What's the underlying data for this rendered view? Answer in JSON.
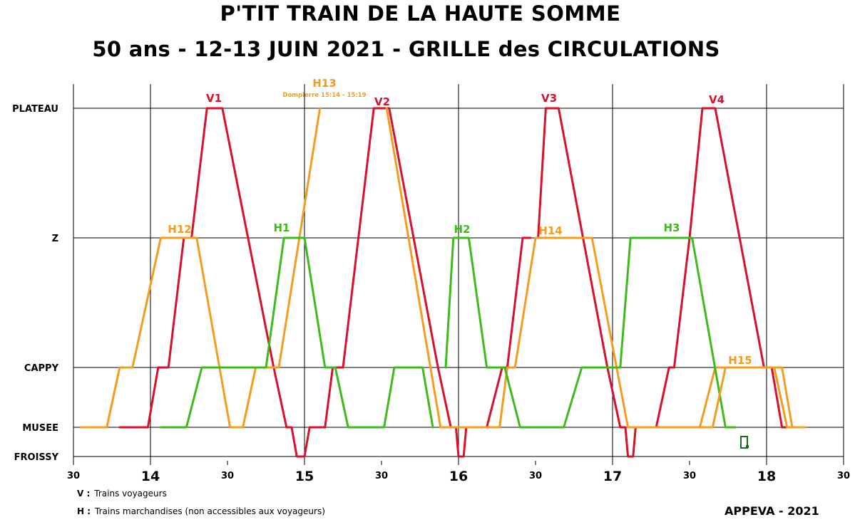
{
  "header": {
    "title_line1": "P'TIT TRAIN DE LA HAUTE SOMME",
    "title_line2": "50 ans - 12-13 JUIN 2021 - GRILLE des CIRCULATIONS"
  },
  "legend": {
    "v_key": "V :",
    "v_text": "Trains voyageurs",
    "h_key": "H :",
    "h_text": "Trains marchandises (non accessibles aux voyageurs)"
  },
  "credit": "APPEVA - 2021",
  "colors": {
    "voyageurs": "#d8102c",
    "marchandises_orange": "#f39c1e",
    "marchandises_green": "#3dbb1c",
    "grid": "#000000",
    "marker": "#1e6b1e"
  },
  "chart_data": {
    "type": "line",
    "title": "50 ans - 12-13 JUIN 2021 - GRILLE des CIRCULATIONS",
    "x_unit": "time (h:mm)",
    "x_range": [
      "13:30",
      "18:30"
    ],
    "x_ticks": [
      {
        "t": "13:30",
        "label": "30",
        "major": false
      },
      {
        "t": "14:00",
        "label": "14",
        "major": true
      },
      {
        "t": "14:30",
        "label": "30",
        "major": false
      },
      {
        "t": "15:00",
        "label": "15",
        "major": true
      },
      {
        "t": "15:30",
        "label": "30",
        "major": false
      },
      {
        "t": "16:00",
        "label": "16",
        "major": true
      },
      {
        "t": "16:30",
        "label": "30",
        "major": false
      },
      {
        "t": "17:00",
        "label": "17",
        "major": true
      },
      {
        "t": "17:30",
        "label": "30",
        "major": false
      },
      {
        "t": "18:00",
        "label": "18",
        "major": true
      },
      {
        "t": "18:30",
        "label": "30",
        "major": false
      }
    ],
    "stations": [
      {
        "id": "PLATEAU",
        "label": "PLATEAU"
      },
      {
        "id": "Z",
        "label": "Z"
      },
      {
        "id": "CAPPY",
        "label": "CAPPY"
      },
      {
        "id": "MUSEE",
        "label": "MUSEE"
      },
      {
        "id": "FROISSY",
        "label": "FROISSY"
      }
    ],
    "grid": true,
    "series": [
      {
        "name": "V1",
        "color": "#d8102c",
        "label_at": "14:25",
        "segments": [
          [
            [
              "13:48",
              "MUSEE"
            ],
            [
              "13:59",
              "MUSEE"
            ],
            [
              "14:03",
              "CAPPY"
            ],
            [
              "14:07",
              "CAPPY"
            ],
            [
              "14:13",
              "Z"
            ],
            [
              "14:17",
              "Z"
            ]
          ],
          [
            [
              "14:16",
              "Z"
            ],
            [
              "14:22",
              "PLATEAU"
            ],
            [
              "14:28",
              "PLATEAU"
            ],
            [
              "14:48",
              "CAPPY"
            ],
            [
              "14:53",
              "MUSEE"
            ],
            [
              "14:55",
              "MUSEE"
            ],
            [
              "14:57",
              "FROISSY"
            ],
            [
              "15:00",
              "FROISSY"
            ],
            [
              "15:02",
              "MUSEE"
            ],
            [
              "15:08",
              "MUSEE"
            ]
          ]
        ]
      },
      {
        "name": "V2",
        "color": "#d8102c",
        "label_at": "15:30",
        "segments": [
          [
            [
              "15:08",
              "MUSEE"
            ],
            [
              "15:11",
              "CAPPY"
            ],
            [
              "15:15",
              "CAPPY"
            ],
            [
              "15:27",
              "PLATEAU"
            ],
            [
              "15:33",
              "PLATEAU"
            ],
            [
              "15:52",
              "CAPPY"
            ],
            [
              "15:57",
              "MUSEE"
            ],
            [
              "15:59",
              "MUSEE"
            ],
            [
              "16:00",
              "FROISSY"
            ],
            [
              "16:02",
              "FROISSY"
            ],
            [
              "16:03",
              "MUSEE"
            ],
            [
              "16:11",
              "MUSEE"
            ]
          ]
        ]
      },
      {
        "name": "V3",
        "color": "#d8102c",
        "label_at": "16:37",
        "segments": [
          [
            [
              "16:11",
              "MUSEE"
            ],
            [
              "16:17",
              "CAPPY"
            ],
            [
              "16:19",
              "CAPPY"
            ],
            [
              "16:25",
              "Z"
            ],
            [
              "16:28",
              "Z"
            ]
          ],
          [
            [
              "16:31",
              "Z"
            ],
            [
              "16:34",
              "PLATEAU"
            ],
            [
              "16:39",
              "PLATEAU"
            ],
            [
              "16:58",
              "CAPPY"
            ],
            [
              "17:03",
              "MUSEE"
            ],
            [
              "17:05",
              "MUSEE"
            ],
            [
              "17:06",
              "FROISSY"
            ],
            [
              "17:08",
              "FROISSY"
            ],
            [
              "17:09",
              "MUSEE"
            ],
            [
              "17:17",
              "MUSEE"
            ]
          ]
        ]
      },
      {
        "name": "V4",
        "color": "#d8102c",
        "label_at": "17:42",
        "segments": [
          [
            [
              "17:17",
              "MUSEE"
            ],
            [
              "17:22",
              "CAPPY"
            ],
            [
              "17:24",
              "CAPPY"
            ],
            [
              "17:30",
              "Z"
            ],
            [
              "17:35",
              "PLATEAU"
            ],
            [
              "17:40",
              "PLATEAU"
            ],
            [
              "17:59",
              "CAPPY"
            ],
            [
              "18:02",
              "CAPPY"
            ],
            [
              "18:06",
              "MUSEE"
            ],
            [
              "18:08",
              "MUSEE"
            ]
          ]
        ]
      },
      {
        "name": "H12",
        "color": "#f39c1e",
        "label_at": "14:12",
        "segments": [
          [
            [
              "13:33",
              "MUSEE"
            ],
            [
              "13:43",
              "MUSEE"
            ],
            [
              "13:48",
              "CAPPY"
            ],
            [
              "13:53",
              "CAPPY"
            ],
            [
              "14:04",
              "Z"
            ],
            [
              "14:18",
              "Z"
            ],
            [
              "14:31",
              "MUSEE"
            ],
            [
              "14:36",
              "MUSEE"
            ],
            [
              "14:41",
              "CAPPY"
            ],
            [
              "14:50",
              "CAPPY"
            ],
            [
              "15:06",
              "PLATEAU"
            ]
          ]
        ]
      },
      {
        "name": "H13",
        "color": "#f39c1e",
        "label_at": "15:08",
        "note": "Dompierre 15:14 - 15:19",
        "segments": [
          [
            [
              "15:32",
              "PLATEAU"
            ],
            [
              "15:53",
              "MUSEE"
            ],
            [
              "16:16",
              "MUSEE"
            ],
            [
              "16:19",
              "CAPPY"
            ],
            [
              "16:22",
              "CAPPY"
            ],
            [
              "16:30",
              "Z"
            ]
          ]
        ]
      },
      {
        "name": "H14",
        "color": "#f39c1e",
        "label_at": "16:41",
        "segments": [
          [
            [
              "16:30",
              "Z"
            ],
            [
              "16:52",
              "Z"
            ],
            [
              "17:06",
              "MUSEE"
            ],
            [
              "17:34",
              "MUSEE"
            ],
            [
              "17:40",
              "CAPPY"
            ],
            [
              "18:03",
              "CAPPY"
            ],
            [
              "18:08",
              "MUSEE"
            ],
            [
              "18:15",
              "MUSEE"
            ]
          ]
        ]
      },
      {
        "name": "H15",
        "color": "#f39c1e",
        "label_at": "17:54",
        "segments": []
      },
      {
        "name": "H1",
        "color": "#3dbb1c",
        "label_at": "14:55",
        "segments": [
          [
            [
              "14:04",
              "MUSEE"
            ],
            [
              "14:14",
              "MUSEE"
            ],
            [
              "14:20",
              "CAPPY"
            ],
            [
              "14:45",
              "CAPPY"
            ],
            [
              "14:52",
              "Z"
            ],
            [
              "15:00",
              "Z"
            ],
            [
              "15:08",
              "CAPPY"
            ],
            [
              "15:12",
              "CAPPY"
            ],
            [
              "15:17",
              "MUSEE"
            ],
            [
              "15:31",
              "MUSEE"
            ],
            [
              "15:35",
              "CAPPY"
            ],
            [
              "15:46",
              "CAPPY"
            ],
            [
              "15:50",
              "MUSEE"
            ]
          ]
        ]
      },
      {
        "name": "H2",
        "color": "#3dbb1c",
        "label_at": "16:01",
        "segments": [
          [
            [
              "15:55",
              "CAPPY"
            ],
            [
              "15:58",
              "Z"
            ],
            [
              "16:04",
              "Z"
            ],
            [
              "16:11",
              "CAPPY"
            ],
            [
              "16:18",
              "CAPPY"
            ],
            [
              "16:24",
              "MUSEE"
            ],
            [
              "16:41",
              "MUSEE"
            ],
            [
              "16:48",
              "CAPPY"
            ],
            [
              "16:57",
              "CAPPY"
            ]
          ]
        ]
      },
      {
        "name": "H3",
        "color": "#3dbb1c",
        "label_at": "17:27",
        "segments": [
          [
            [
              "16:57",
              "CAPPY"
            ],
            [
              "17:03",
              "CAPPY"
            ],
            [
              "17:07",
              "Z"
            ],
            [
              "17:31",
              "Z"
            ],
            [
              "17:44",
              "MUSEE"
            ],
            [
              "17:48",
              "MUSEE"
            ]
          ]
        ]
      }
    ]
  }
}
